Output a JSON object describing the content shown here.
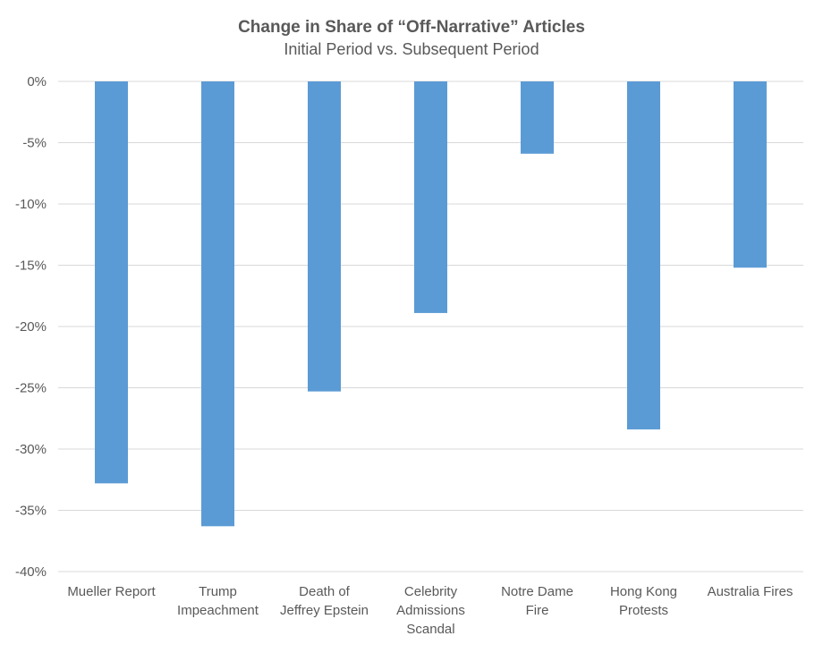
{
  "chart_data": {
    "type": "bar",
    "title": "Change in Share of “Off-Narrative” Articles",
    "subtitle": "Initial Period vs. Subsequent Period",
    "categories": [
      "Mueller Report",
      "Trump Impeachment",
      "Death of Jeffrey Epstein",
      "Celebrity Admissions Scandal",
      "Notre Dame Fire",
      "Hong Kong Protests",
      "Australia Fires"
    ],
    "category_lines": [
      [
        "Mueller Report"
      ],
      [
        "Trump",
        "Impeachment"
      ],
      [
        "Death of",
        "Jeffrey Epstein"
      ],
      [
        "Celebrity",
        "Admissions",
        "Scandal"
      ],
      [
        "Notre Dame",
        "Fire"
      ],
      [
        "Hong Kong",
        "Protests"
      ],
      [
        "Australia Fires"
      ]
    ],
    "values": [
      -32.8,
      -36.3,
      -25.3,
      -18.9,
      -5.9,
      -28.4,
      -15.2
    ],
    "ylim": [
      -40,
      0
    ],
    "yticks": [
      0,
      -5,
      -10,
      -15,
      -20,
      -25,
      -30,
      -35,
      -40
    ],
    "ytick_labels": [
      "0%",
      "-5%",
      "-10%",
      "-15%",
      "-20%",
      "-25%",
      "-30%",
      "-35%",
      "-40%"
    ],
    "xlabel": "",
    "ylabel": "",
    "grid": true,
    "legend": "none",
    "colors": {
      "bar": "#5b9bd5",
      "grid": "#d9d9d9",
      "text": "#595959",
      "title": "#595959"
    }
  }
}
